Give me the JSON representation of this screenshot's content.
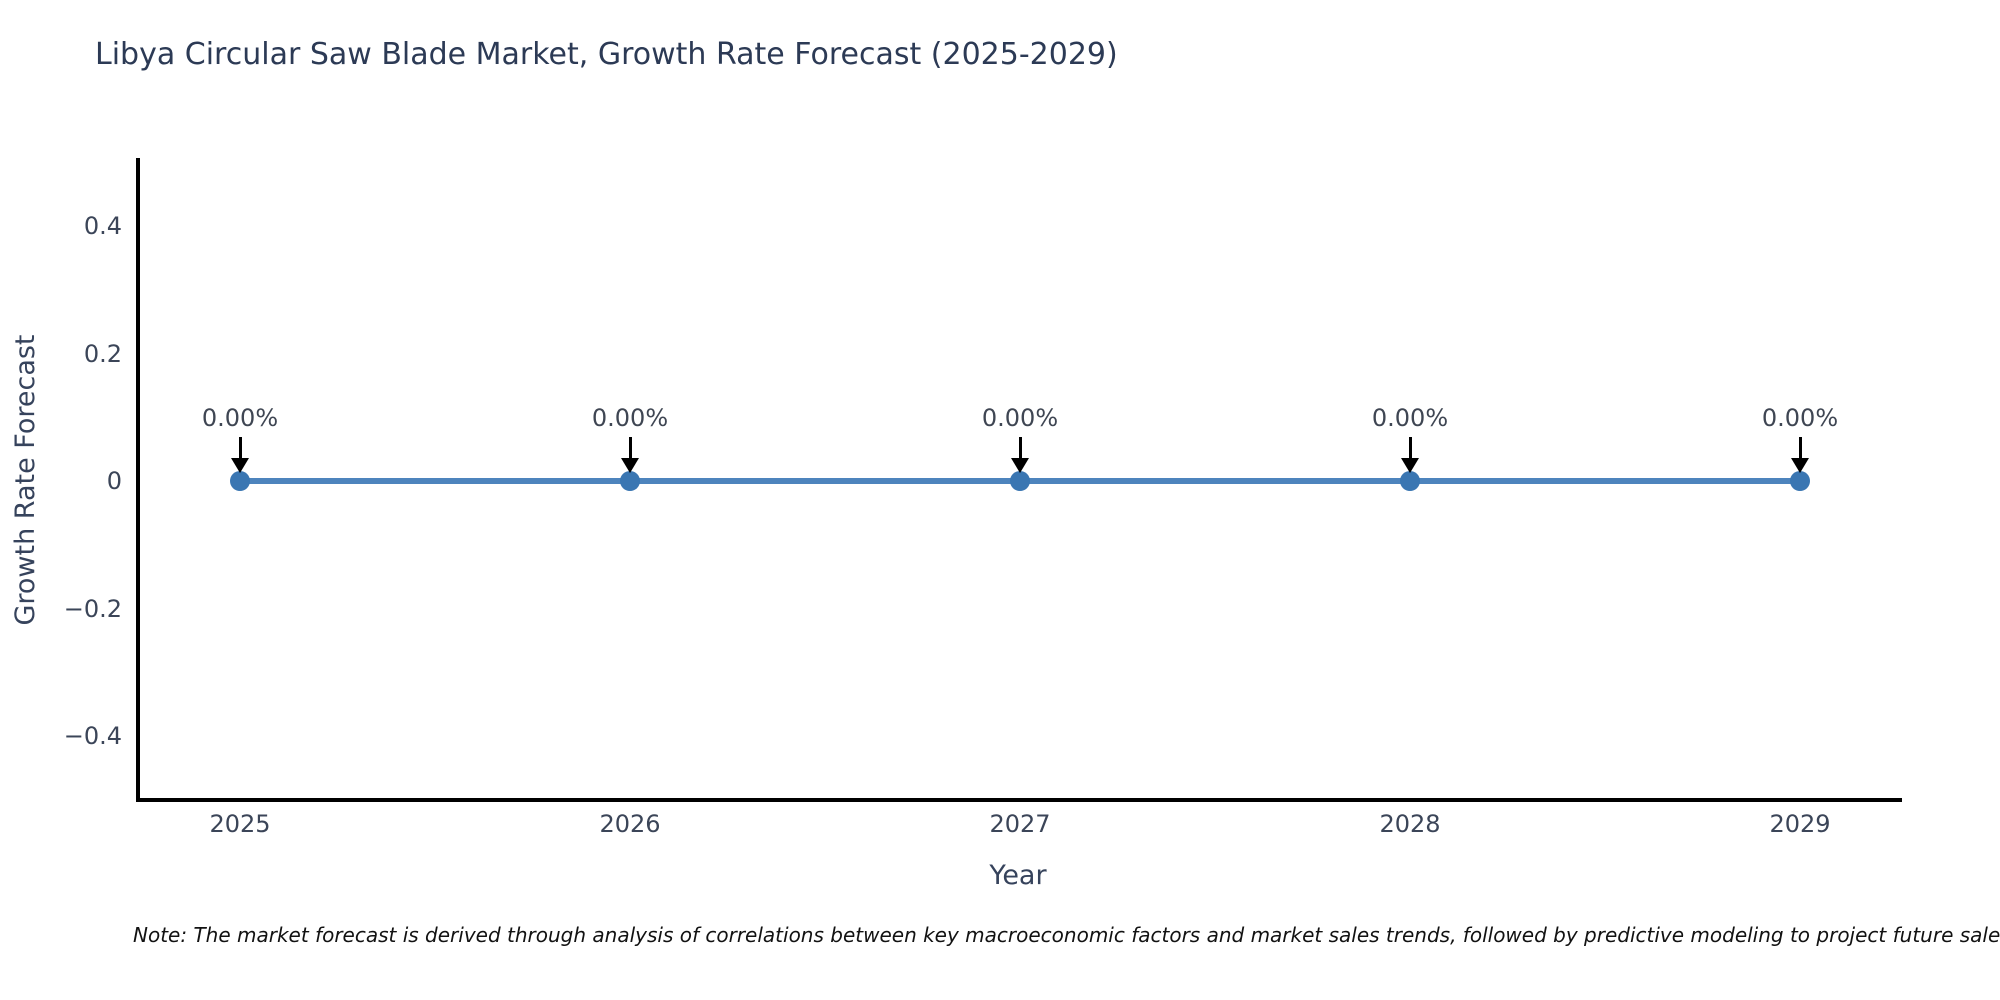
{
  "title": "Libya Circular Saw Blade Market, Growth Rate Forecast (2025-2029)",
  "note": "Note: The market forecast is derived through analysis of correlations between key macroeconomic factors and market sales trends, followed by predictive modeling to project future sales",
  "chart_data": {
    "type": "line",
    "title": "Libya Circular Saw Blade Market, Growth Rate Forecast (2025-2029)",
    "xlabel": "Year",
    "ylabel": "Growth Rate Forecast",
    "x": [
      2025,
      2026,
      2027,
      2028,
      2029
    ],
    "series": [
      {
        "name": "Growth Rate Forecast",
        "values": [
          0,
          0,
          0,
          0,
          0
        ]
      }
    ],
    "point_labels": [
      "0.00%",
      "0.00%",
      "0.00%",
      "0.00%",
      "0.00%"
    ],
    "xtick_labels": [
      "2025",
      "2026",
      "2027",
      "2028",
      "2029"
    ],
    "yticks": [
      {
        "value": -0.4,
        "label": "−0.4"
      },
      {
        "value": -0.2,
        "label": "−0.2"
      },
      {
        "value": 0,
        "label": "0"
      },
      {
        "value": 0.2,
        "label": "0.2"
      },
      {
        "value": 0.4,
        "label": "0.4"
      }
    ],
    "xlim": [
      2024.74,
      2029.26
    ],
    "ylim": [
      -0.5,
      0.5
    ],
    "grid": false,
    "legend": "none",
    "colors": {
      "line": "#4d84bd",
      "marker": "#3a76b2",
      "arrow": "#000000",
      "axis": "#000000",
      "title_text": "#2c3a55",
      "tick_text": "#3b4558"
    }
  }
}
